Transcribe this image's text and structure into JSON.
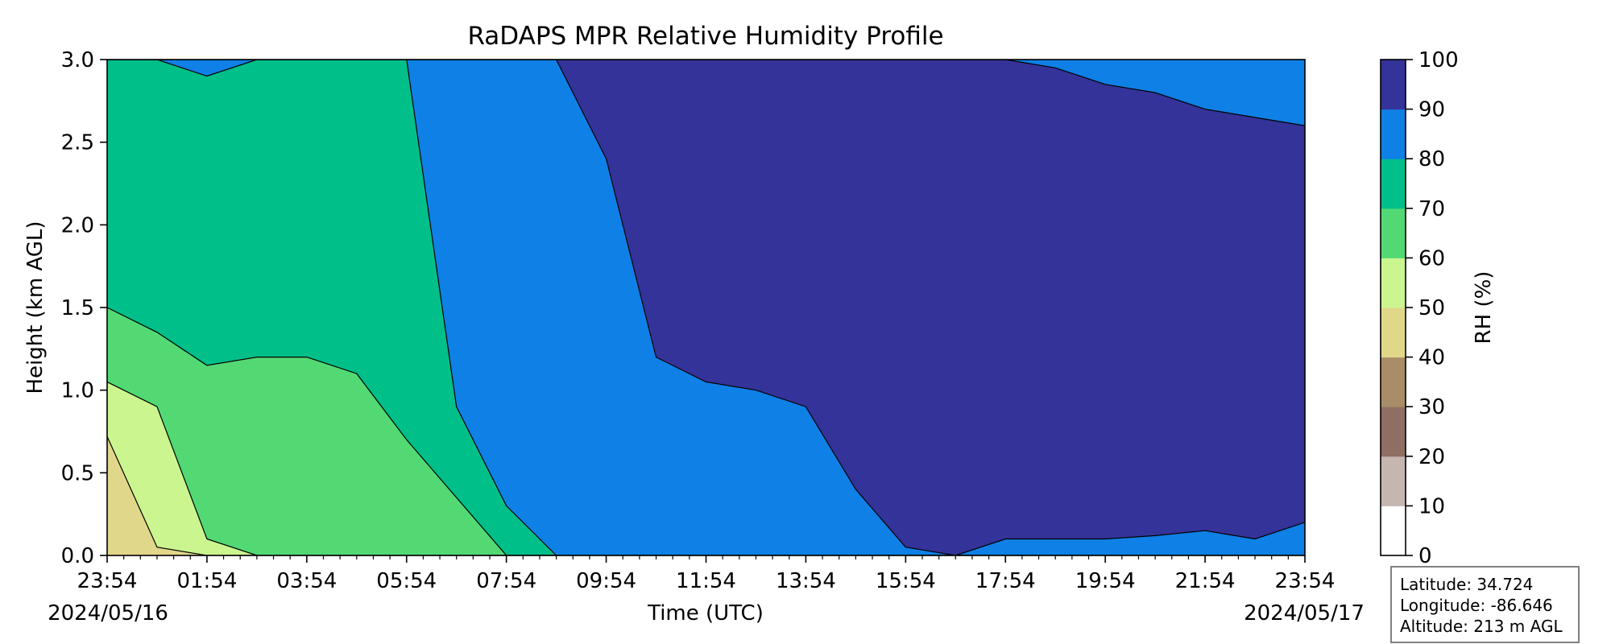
{
  "chart_data": {
    "type": "heatmap",
    "title": "RaDAPS MPR Relative Humidity Profile",
    "xlabel": "Time (UTC)",
    "ylabel": "Height (km AGL)",
    "x_ticks": [
      "23:54",
      "01:54",
      "03:54",
      "05:54",
      "07:54",
      "09:54",
      "11:54",
      "13:54",
      "15:54",
      "17:54",
      "19:54",
      "21:54",
      "23:54"
    ],
    "start_date": "2024/05/16",
    "end_date": "2024/05/17",
    "ylim": [
      0,
      3.0
    ],
    "y_ticks": [
      "0.0",
      "0.5",
      "1.0",
      "1.5",
      "2.0",
      "2.5",
      "3.0"
    ],
    "colorbar": {
      "label": "RH (%)",
      "ticks": [
        "0",
        "10",
        "20",
        "30",
        "40",
        "50",
        "60",
        "70",
        "80",
        "90",
        "100"
      ],
      "levels": [
        0,
        10,
        20,
        30,
        40,
        50,
        60,
        70,
        80,
        90,
        100
      ],
      "colors": [
        "#ffffff",
        "#c6b6b1",
        "#8f6f63",
        "#a88d68",
        "#e1d78a",
        "#cbf58f",
        "#53d974",
        "#00bf89",
        "#0f80e6",
        "#343399"
      ]
    },
    "rh_profile": {
      "hours_elapsed": [
        0,
        1,
        2,
        3,
        4,
        5,
        6,
        7,
        8,
        9,
        10,
        11,
        12,
        13,
        14,
        15,
        16,
        17,
        18,
        19,
        20,
        21,
        22,
        23,
        24
      ],
      "boundary_heights_km": {
        "40": [
          0.72,
          0.05,
          0,
          0,
          0,
          0,
          0,
          0,
          0,
          0,
          0,
          0,
          0,
          0,
          0,
          0,
          0,
          0,
          0,
          0,
          0,
          0,
          0,
          0,
          0
        ],
        "50": [
          1.05,
          0.9,
          0.1,
          0,
          0,
          0,
          0,
          0,
          0,
          0,
          0,
          0,
          0,
          0,
          0,
          0,
          0,
          0,
          0,
          0,
          0,
          0,
          0,
          0,
          0
        ],
        "60": [
          1.5,
          1.35,
          1.15,
          1.2,
          1.2,
          1.1,
          0.7,
          0.35,
          0,
          0,
          0,
          0,
          0,
          0,
          0,
          0,
          0,
          0,
          0,
          0,
          0,
          0,
          0,
          0,
          0
        ],
        "70": [
          3.0,
          3.0,
          2.9,
          3.0,
          3.0,
          3.0,
          3.0,
          0.9,
          0.3,
          0,
          0,
          0,
          0,
          0,
          0,
          0,
          0,
          0,
          0,
          0,
          0,
          0,
          0,
          0,
          0
        ],
        "80": [
          3.0,
          3.0,
          3.0,
          3.0,
          3.0,
          3.0,
          3.0,
          3.0,
          3.0,
          3.0,
          3.0,
          3.0,
          3.0,
          3.0,
          3.0,
          3.0,
          0.05,
          0,
          0,
          0,
          0,
          0,
          0,
          0,
          0
        ],
        "90": [
          3.0,
          3.0,
          3.0,
          3.0,
          3.0,
          3.0,
          3.0,
          3.0,
          3.0,
          3.0,
          2.4,
          1.2,
          1.05,
          1.0,
          0.9,
          0.4,
          0.05,
          0,
          0.1,
          0.1,
          0.1,
          0.12,
          0.15,
          0.1,
          0.2
        ],
        "100": [
          3.0,
          3.0,
          3.0,
          3.0,
          3.0,
          3.0,
          3.0,
          3.0,
          3.0,
          3.0,
          3.0,
          3.0,
          3.0,
          3.0,
          3.0,
          3.0,
          3.0,
          3.0,
          3.0,
          2.95,
          2.85,
          2.8,
          2.7,
          2.65,
          2.6
        ]
      }
    }
  },
  "info_box": {
    "latitude": "Latitude: 34.724",
    "longitude": "Longitude: -86.646",
    "altitude": "Altitude: 213 m AGL"
  }
}
